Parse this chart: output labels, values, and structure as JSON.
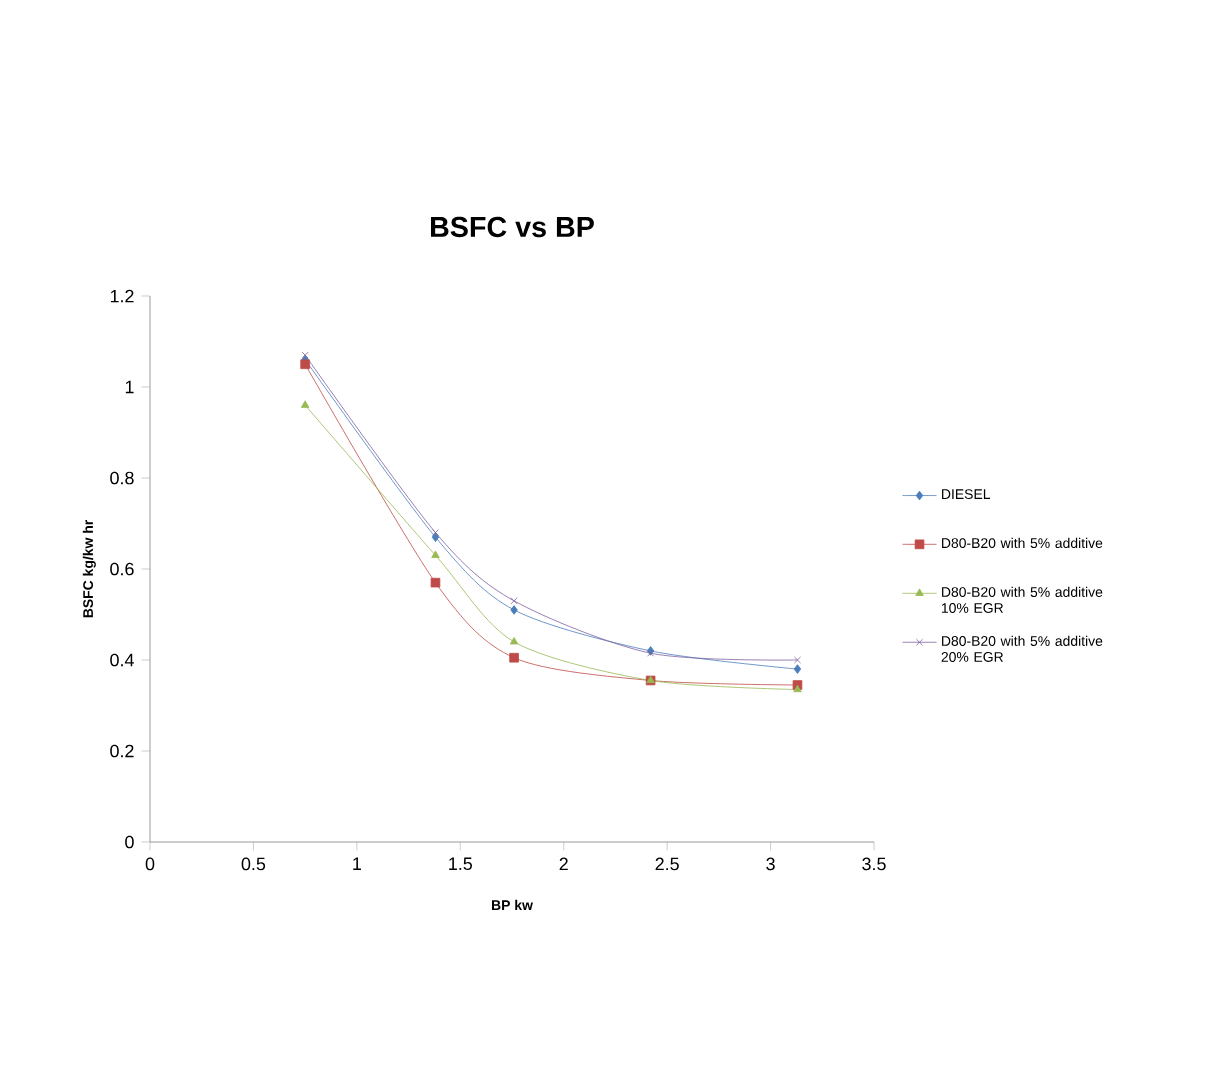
{
  "chart_data": {
    "type": "line",
    "title": "BSFC vs BP",
    "xlabel": "BP kw",
    "ylabel": "BSFC kg/kw hr",
    "x": [
      0.75,
      1.38,
      1.76,
      2.42,
      3.13
    ],
    "series": [
      {
        "name": "DIESEL",
        "color": "#4a7ebb",
        "marker": "diamond",
        "values": [
          1.06,
          0.67,
          0.51,
          0.42,
          0.38
        ]
      },
      {
        "name": "D80-B20 with 5% additive",
        "color": "#be4b48",
        "marker": "square",
        "values": [
          1.05,
          0.57,
          0.405,
          0.355,
          0.345
        ]
      },
      {
        "name": "D80-B20 with 5% additive 10% EGR",
        "color": "#98b954",
        "marker": "triangle",
        "values": [
          0.96,
          0.63,
          0.44,
          0.355,
          0.335
        ]
      },
      {
        "name": "D80-B20 with 5% additive 20% EGR",
        "color": "#7d60a0",
        "marker": "cross",
        "values": [
          1.07,
          0.68,
          0.53,
          0.415,
          0.4
        ]
      }
    ],
    "xlim": [
      0,
      3.5
    ],
    "xticks": [
      0,
      0.5,
      1,
      1.5,
      2,
      2.5,
      3,
      3.5
    ],
    "ylim": [
      0,
      1.2
    ],
    "yticks": [
      0,
      0.2,
      0.4,
      0.6,
      0.8,
      1,
      1.2
    ],
    "legend": "right",
    "grid": false,
    "line_style": "solid"
  }
}
